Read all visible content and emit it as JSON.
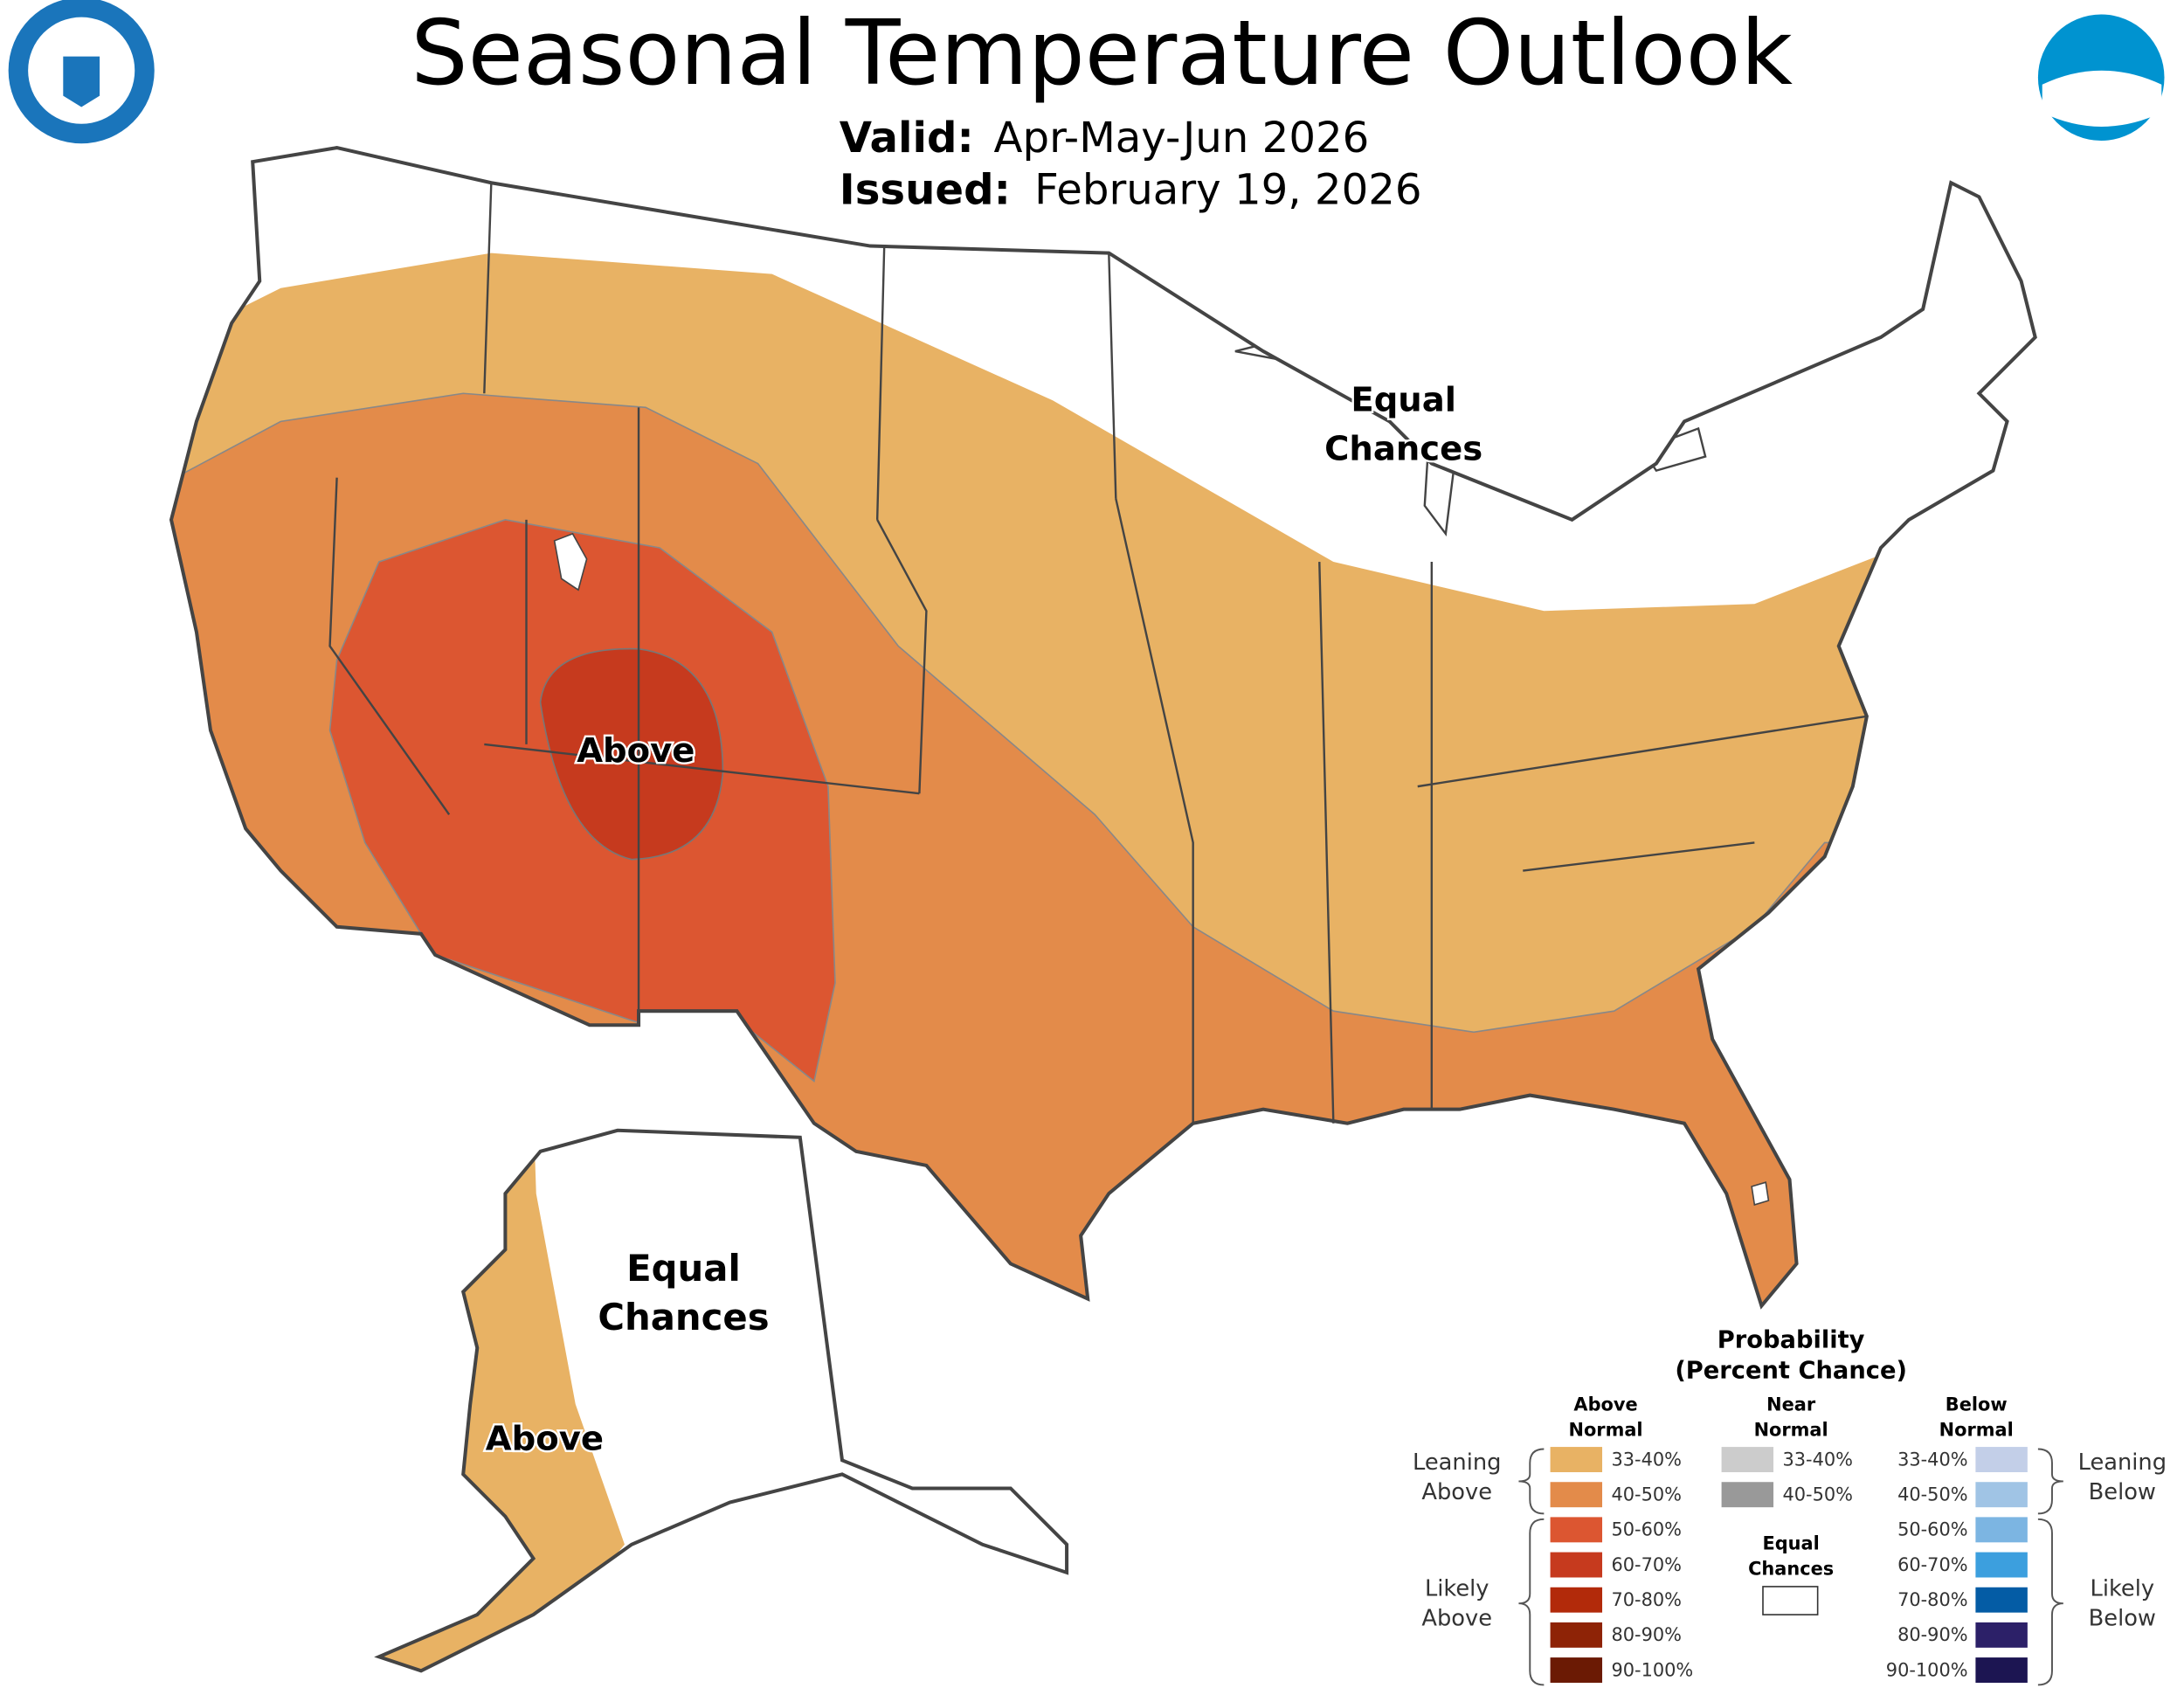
{
  "title": "Seasonal Temperature Outlook",
  "valid": {
    "label": "Valid:",
    "value": "Apr-May-Jun 2026"
  },
  "issued": {
    "label": "Issued:",
    "value": "February 19, 2026"
  },
  "map_labels": [
    {
      "lines": [
        "Equal",
        "Chances"
      ]
    },
    {
      "lines": [
        "Above"
      ]
    },
    {
      "lines": [
        "Equal",
        "Chances"
      ]
    },
    {
      "lines": [
        "Above"
      ]
    }
  ],
  "legend": {
    "title": [
      "Probability",
      "(Percent Chance)"
    ],
    "columns": [
      {
        "heading": [
          "Above",
          "Normal"
        ],
        "items": [
          {
            "label": "33-40%",
            "color": "#e8b264"
          },
          {
            "label": "40-50%",
            "color": "#e38b4a"
          },
          {
            "label": "50-60%",
            "color": "#dc5631"
          },
          {
            "label": "60-70%",
            "color": "#c63a1e"
          },
          {
            "label": "70-80%",
            "color": "#b22a0a"
          },
          {
            "label": "80-90%",
            "color": "#8e2306"
          },
          {
            "label": "90-100%",
            "color": "#6b1a04"
          }
        ]
      },
      {
        "heading": [
          "Near",
          "Normal"
        ],
        "items": [
          {
            "label": "33-40%",
            "color": "#cccccc"
          },
          {
            "label": "40-50%",
            "color": "#999999"
          }
        ]
      },
      {
        "heading": [
          "Below",
          "Normal"
        ],
        "items": [
          {
            "label": "33-40%",
            "color": "#c3cfe8"
          },
          {
            "label": "40-50%",
            "color": "#a0c4e5"
          },
          {
            "label": "50-60%",
            "color": "#7cb5e2"
          },
          {
            "label": "60-70%",
            "color": "#3c9fde"
          },
          {
            "label": "70-80%",
            "color": "#045ca5"
          },
          {
            "label": "80-90%",
            "color": "#2c2068"
          },
          {
            "label": "90-100%",
            "color": "#1c1552"
          }
        ]
      }
    ],
    "equal_chances": [
      "Equal",
      "Chances"
    ],
    "groups": [
      {
        "lines": [
          "Leaning",
          "Above"
        ]
      },
      {
        "lines": [
          "Likely",
          "Above"
        ]
      },
      {
        "lines": [
          "Leaning",
          "Below"
        ]
      },
      {
        "lines": [
          "Likely",
          "Below"
        ]
      }
    ]
  }
}
